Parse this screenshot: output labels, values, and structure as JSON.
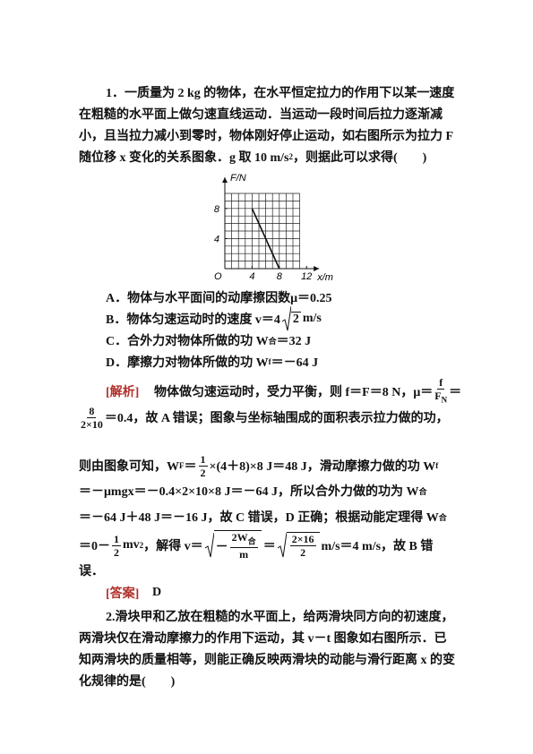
{
  "question1": {
    "stem": [
      [
        "1．一质量为 2 kg 的物体，在水平恒定拉力的作用下以某一速度"
      ],
      [
        "在粗糙的水平面上做匀速直线运动．当运动一段时间后拉力逐渐减"
      ],
      [
        "小，且当拉力减小到零时，物体刚好停止运动，如右图所示为拉力 F"
      ],
      [
        "随位移 x 变化的关系图象．g 取 10 m/s",
        {
          "sup": "2"
        },
        "，则据此可以求得(　　)"
      ]
    ],
    "options": [
      [
        "A．物体与水平面间的动摩擦因数μ＝0.25"
      ],
      [
        "B．物体匀速运动时的速度 v＝4",
        {
          "sqrt": [
            "2"
          ]
        },
        " m/s"
      ],
      [
        "C．合外力对物体所做的功 W",
        {
          "sub": "合"
        },
        "＝32 J"
      ],
      [
        "D．摩擦力对物体所做的功 W",
        {
          "sub": "f"
        },
        "＝－64 J"
      ]
    ]
  },
  "figure": {
    "y_label": "F/N",
    "x_label": "x/m",
    "origin_label": "O",
    "xlim": [
      0,
      12
    ],
    "ylim": [
      0,
      10
    ],
    "xticks": [
      4,
      8,
      12
    ],
    "yticks": [
      4,
      8
    ],
    "grid": true,
    "line": {
      "x": [
        4,
        8
      ],
      "y": [
        8,
        0
      ]
    }
  },
  "analysis": {
    "label": "[解析]",
    "lines": [
      [
        "物体做匀速运动时，受力平衡，则 f＝F＝8 N，μ＝",
        {
          "num": [
            "f"
          ],
          "den": [
            "F",
            {
              "sub": "N"
            }
          ]
        },
        "＝"
      ],
      [
        {
          "num": [
            "8"
          ],
          "den": [
            "2×10"
          ]
        },
        "＝0.4，故 A 错误；图象与坐标轴围成的面积表示拉力做的功，"
      ],
      [
        "则由图象可知，W",
        {
          "sub": "F"
        },
        "＝",
        {
          "num": [
            "1"
          ],
          "den": [
            "2"
          ]
        },
        "×(4＋8)×8 J＝48 J，滑动摩擦力做的功 W",
        {
          "sub": "f"
        }
      ],
      [
        "＝－μmgx＝－0.4×2×10×8 J＝－64 J，所以合外力做的功为 W",
        {
          "sub": "合"
        }
      ],
      [
        "＝－64 J＋48 J＝－16 J，故 C 错误，D 正确；根据动能定理得 W",
        {
          "sub": "合"
        }
      ],
      [
        "＝0－",
        {
          "num": [
            "1"
          ],
          "den": [
            "2"
          ]
        },
        "mv",
        {
          "sup": "2"
        },
        "，解得 v＝",
        {
          "sqrt": [
            "－",
            {
              "num": [
                "2W",
                {
                  "sub": "合"
                }
              ],
              "den": [
                "m"
              ]
            }
          ]
        },
        "＝",
        {
          "sqrt": [
            {
              "num": [
                "2×16"
              ],
              "den": [
                "2"
              ]
            }
          ]
        },
        " m/s＝4 m/s，故 B 错"
      ],
      [
        "误．"
      ]
    ]
  },
  "answer": {
    "label": "[答案]",
    "text": "D"
  },
  "question2": {
    "stem": [
      [
        "2.滑块甲和乙放在粗糙的水平面上，给两滑块同方向的初速度，"
      ],
      [
        "两滑块仅在滑动摩擦力的作用下运动，其 v－t 图象如右图所示．已"
      ],
      [
        "知两滑块的质量相等，则能正确反映两滑块的动能与滑行距离 x 的变"
      ],
      [
        "化规律的是(　　)"
      ]
    ]
  }
}
